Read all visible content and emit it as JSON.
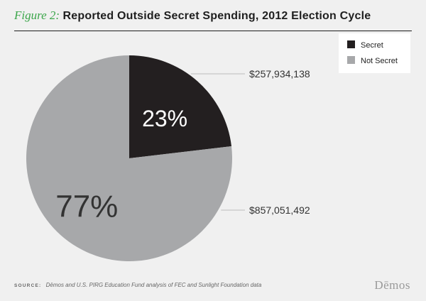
{
  "header": {
    "figure_label": "Figure 2:",
    "title": "Reported Outside Secret Spending, 2012 Election Cycle"
  },
  "chart_data": {
    "type": "pie",
    "title": "Reported Outside Secret Spending, 2012 Election Cycle",
    "slices": [
      {
        "label": "Secret",
        "value": 257934138,
        "value_label": "$257,934,138",
        "percent_label": "23%",
        "color": "#231f20"
      },
      {
        "label": "Not Secret",
        "value": 857051492,
        "value_label": "$857,051,492",
        "percent_label": "77%",
        "color": "#a7a8aa"
      }
    ],
    "legend_position": "top-right"
  },
  "footer": {
    "source_label": "SOURCE:",
    "source_text": "Dēmos and U.S. PIRG Education Fund analysis of FEC and Sunlight Foundation data",
    "logo": "Dēmos"
  },
  "colors": {
    "title_accent": "#3ba64a",
    "background": "#f0f0f0"
  }
}
